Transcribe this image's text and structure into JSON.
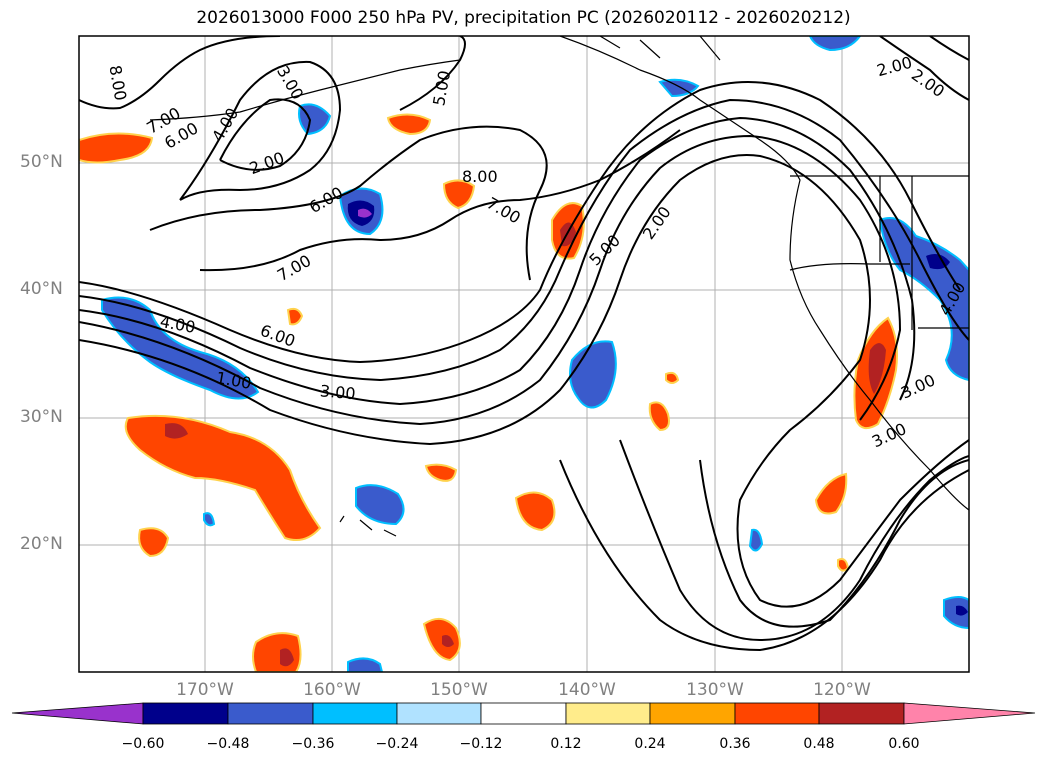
{
  "title": "2026013000 F000 250 hPa PV, precipitation PC (2026020112 - 2026020212)",
  "map": {
    "lat_labels": [
      "50°N",
      "40°N",
      "30°N",
      "20°N"
    ],
    "lon_labels": [
      "170°W",
      "160°W",
      "150°W",
      "140°W",
      "130°W",
      "120°W"
    ],
    "contour_labels": [
      "8.00",
      "7.00",
      "6.00",
      "4.00",
      "3.00",
      "2.00",
      "5.00",
      "6.00",
      "7.00",
      "8.00",
      "7.00",
      "5.00",
      "2.00",
      "2.00",
      "2.00",
      "4.00",
      "6.00",
      "4.00",
      "1.00",
      "3.00",
      "3.00",
      "3.00"
    ]
  },
  "colorbar": {
    "ticks": [
      "−0.60",
      "−0.48",
      "−0.36",
      "−0.24",
      "−0.12",
      "0.12",
      "0.24",
      "0.36",
      "0.48",
      "0.60"
    ],
    "colors": [
      "#9932cc",
      "#00008b",
      "#3a5bcc",
      "#00bfff",
      "#b0e2ff",
      "#ffffff",
      "#ffec8b",
      "#ffa500",
      "#ff4500",
      "#b22222",
      "#ff83aa"
    ]
  }
}
